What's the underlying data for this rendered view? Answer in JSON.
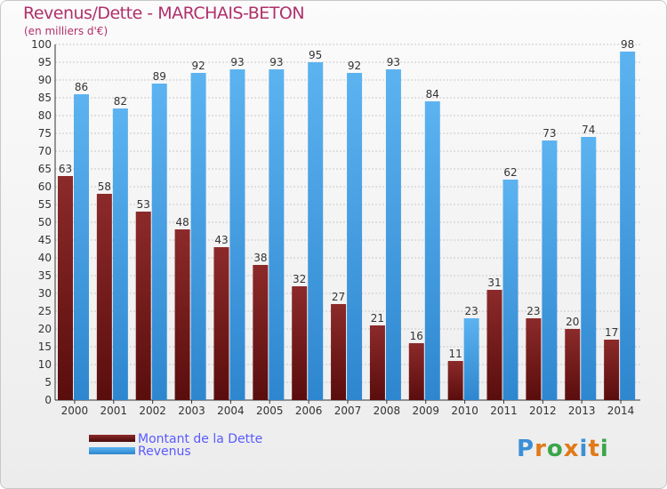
{
  "title": "Revenus/Dette - MARCHAIS-BETON",
  "subtitle": "(en milliers d'€)",
  "brand": "Proxiti",
  "colors": {
    "dette": "#7a1c1c",
    "revenus": "#4aa3e6",
    "title": "#b0306a",
    "legend_text": "#5a5aff"
  },
  "chart_data": {
    "type": "bar",
    "categories": [
      "2000",
      "2001",
      "2002",
      "2003",
      "2004",
      "2005",
      "2006",
      "2007",
      "2008",
      "2009",
      "2010",
      "2011",
      "2012",
      "2013",
      "2014"
    ],
    "series": [
      {
        "name": "Montant de la Dette",
        "values": [
          63,
          58,
          53,
          48,
          43,
          38,
          32,
          27,
          21,
          16,
          11,
          31,
          23,
          20,
          17
        ]
      },
      {
        "name": "Revenus",
        "values": [
          86,
          82,
          89,
          92,
          93,
          93,
          95,
          92,
          93,
          84,
          23,
          62,
          73,
          74,
          98
        ]
      }
    ],
    "ylim": [
      0,
      100
    ],
    "ytick_step": 5,
    "grid": true,
    "legend": "bottom-left"
  }
}
